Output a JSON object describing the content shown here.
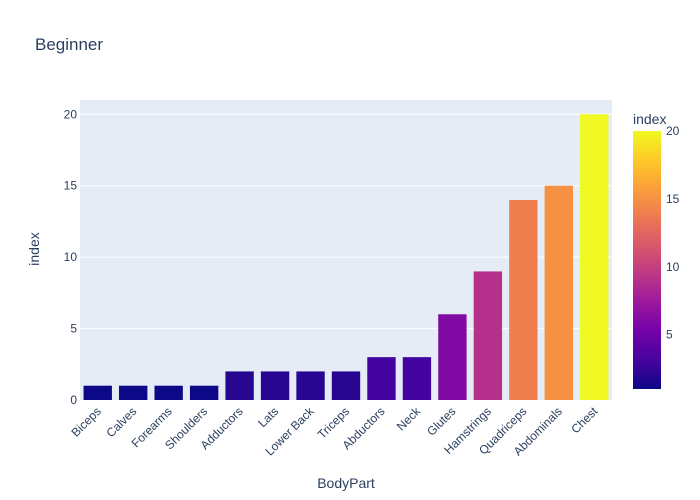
{
  "chart_data": {
    "type": "bar",
    "title": "Beginner",
    "xlabel": "BodyPart",
    "ylabel": "index",
    "categories": [
      "Biceps",
      "Calves",
      "Forearms",
      "Shoulders",
      "Adductors",
      "Lats",
      "Lower Back",
      "Triceps",
      "Abductors",
      "Neck",
      "Glutes",
      "Hamstrings",
      "Quadriceps",
      "Abdominals",
      "Chest"
    ],
    "values": [
      1,
      1,
      1,
      1,
      2,
      2,
      2,
      2,
      3,
      3,
      6,
      9,
      14,
      15,
      20
    ],
    "ylim": [
      0,
      21
    ],
    "yticks": [
      0,
      5,
      10,
      15,
      20
    ],
    "grid": true,
    "colorscale": "plasma",
    "colorbar": {
      "title": "index",
      "range": [
        1,
        20
      ],
      "ticks": [
        5,
        10,
        15,
        20
      ]
    }
  },
  "colors": {
    "plot_bg": "#e5ecf6",
    "grid": "#ffffff",
    "text": "#2a3f5f"
  }
}
